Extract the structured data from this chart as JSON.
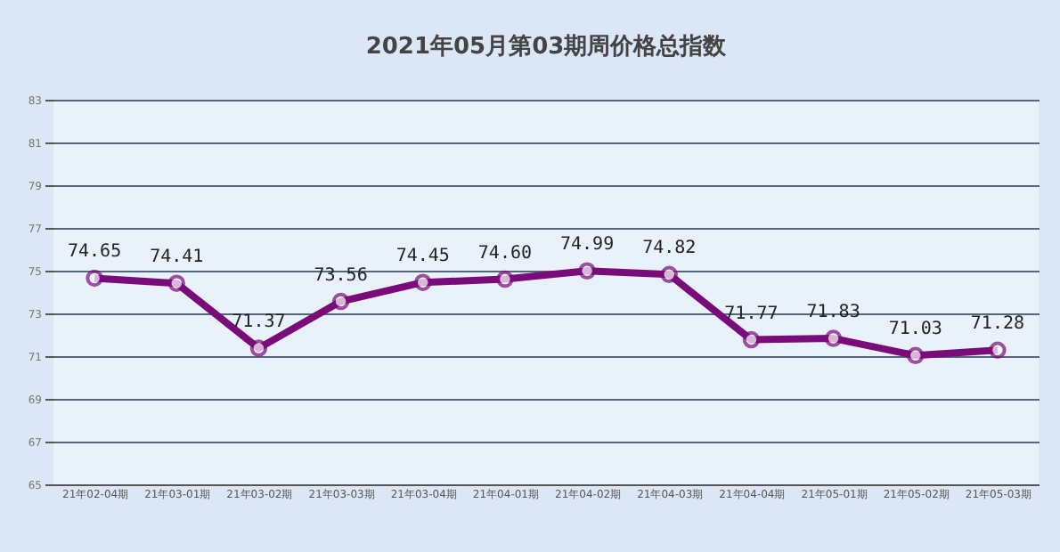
{
  "chart_data": {
    "type": "line",
    "title": "2021年05月第03期周价格总指数",
    "categories": [
      "21年02-04期",
      "21年03-01期",
      "21年03-02期",
      "21年03-03期",
      "21年03-04期",
      "21年04-01期",
      "21年04-02期",
      "21年04-03期",
      "21年04-04期",
      "21年05-01期",
      "21年05-02期",
      "21年05-03期"
    ],
    "series": [
      {
        "color": "#7a0c7a",
        "values": [
          74.65,
          74.41,
          71.37,
          73.56,
          74.45,
          74.6,
          74.99,
          74.82,
          71.77,
          71.83,
          71.03,
          71.28
        ]
      }
    ],
    "value_labels": [
      "74.65",
      "74.41",
      "71.37",
      "73.56",
      "74.45",
      "74.60",
      "74.99",
      "74.82",
      "71.77",
      "71.83",
      "71.03",
      "71.28"
    ],
    "ylim": [
      65,
      83
    ],
    "yticks": [
      65,
      67,
      69,
      71,
      73,
      75,
      77,
      79,
      81,
      83
    ],
    "grid": "y",
    "marker": "circle",
    "line_style": "solid",
    "legend": false
  }
}
